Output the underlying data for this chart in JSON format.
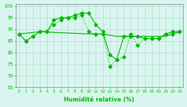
{
  "line1_x": [
    0,
    1,
    2,
    3,
    4,
    5,
    6,
    7,
    8,
    9,
    10,
    11,
    12,
    13,
    14,
    15,
    16,
    17,
    18,
    19,
    20,
    21,
    22,
    23
  ],
  "line1_y": [
    88,
    85,
    87,
    89,
    89,
    94,
    95,
    95,
    96,
    97,
    97,
    92,
    89,
    79,
    77,
    87,
    87,
    87,
    86,
    86,
    86,
    88,
    89,
    89
  ],
  "line2_x": [
    0,
    1,
    2,
    3,
    4,
    5,
    6,
    7,
    8,
    9,
    10,
    11,
    12,
    13,
    14,
    15,
    16,
    17,
    18,
    19,
    20,
    21,
    22,
    23
  ],
  "line2_y": [
    88,
    85,
    87,
    89,
    89,
    92,
    94,
    95,
    95,
    96,
    89,
    88,
    88,
    74,
    77,
    78,
    88,
    83,
    86,
    86,
    86,
    88,
    88,
    89
  ],
  "line3_x": [
    0,
    3,
    10,
    12,
    14,
    21,
    23
  ],
  "line3_y": [
    88,
    89,
    88,
    88,
    87,
    87,
    89
  ],
  "xlabel": "Humidité relative (%)",
  "xlim": [
    -0.5,
    23.5
  ],
  "ylim": [
    65,
    101
  ],
  "yticks": [
    65,
    70,
    75,
    80,
    85,
    90,
    95,
    100
  ],
  "xticks": [
    0,
    1,
    2,
    3,
    4,
    5,
    6,
    7,
    8,
    9,
    10,
    11,
    12,
    13,
    14,
    15,
    16,
    17,
    18,
    19,
    20,
    21,
    22,
    23
  ],
  "line_color": "#00bb00",
  "bg_color": "#daf5ef",
  "grid_color": "#aaddcc",
  "marker": "D",
  "marker_size": 2.5,
  "linewidth": 0.9
}
